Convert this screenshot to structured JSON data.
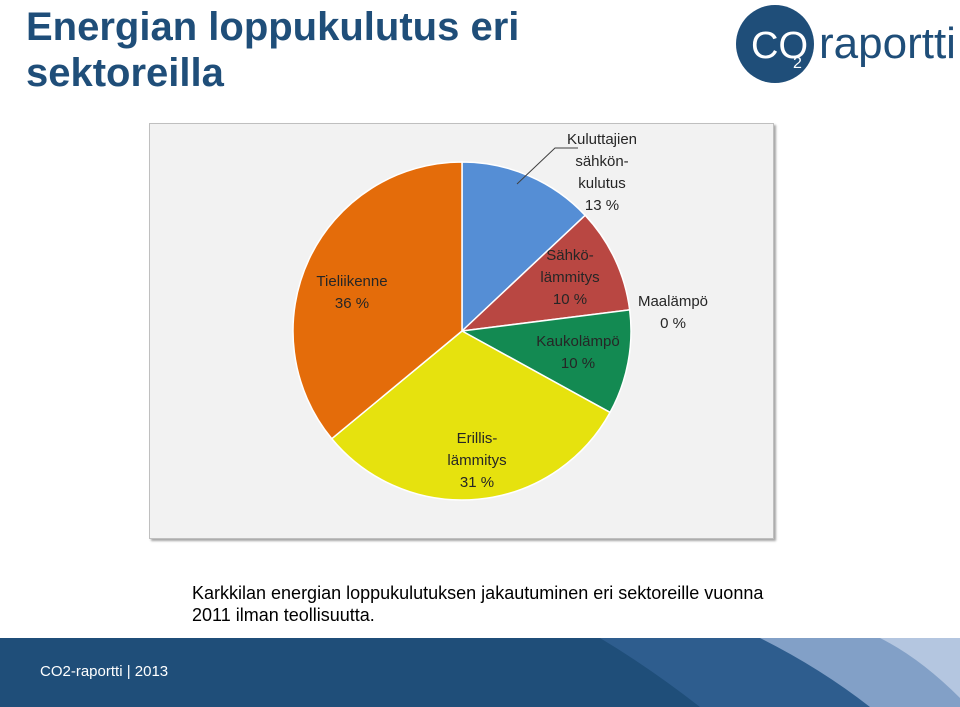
{
  "title": "Energian loppukulutus eri sektoreilla",
  "logo": {
    "text_co": "CO",
    "text_sub": "2",
    "text_rest": "raportti"
  },
  "chart_data": {
    "type": "pie",
    "title": "",
    "slices": [
      {
        "label_lines": [
          "Kuluttajien",
          "sähkön-",
          "kulutus",
          "13 %"
        ],
        "value": 13,
        "color": "#558ed5"
      },
      {
        "label_lines": [
          "Sähkö-",
          "lämmitys",
          "10 %"
        ],
        "value": 10,
        "color": "#b94742"
      },
      {
        "label_lines": [
          "Maalämpö",
          "0 %"
        ],
        "value": 0,
        "color": "#8fb33a"
      },
      {
        "label_lines": [
          "Kaukolämpö",
          "10 %"
        ],
        "value": 10,
        "color": "#138a52"
      },
      {
        "label_lines": [
          "Erillis-",
          "lämmitys",
          "31 %"
        ],
        "value": 31,
        "color": "#e6e20e"
      },
      {
        "label_lines": [
          "Tieliikenne",
          "36 %"
        ],
        "value": 36,
        "color": "#e46c0a"
      }
    ]
  },
  "caption": "Karkkilan energian loppukulutuksen jakautuminen eri sektoreille vuonna 2011   ilman teollisuutta.",
  "footer": {
    "text": "CO2-raportti | 2013",
    "colors": [
      "#1f4e79",
      "#2e6da4",
      "#8eaadb"
    ]
  }
}
